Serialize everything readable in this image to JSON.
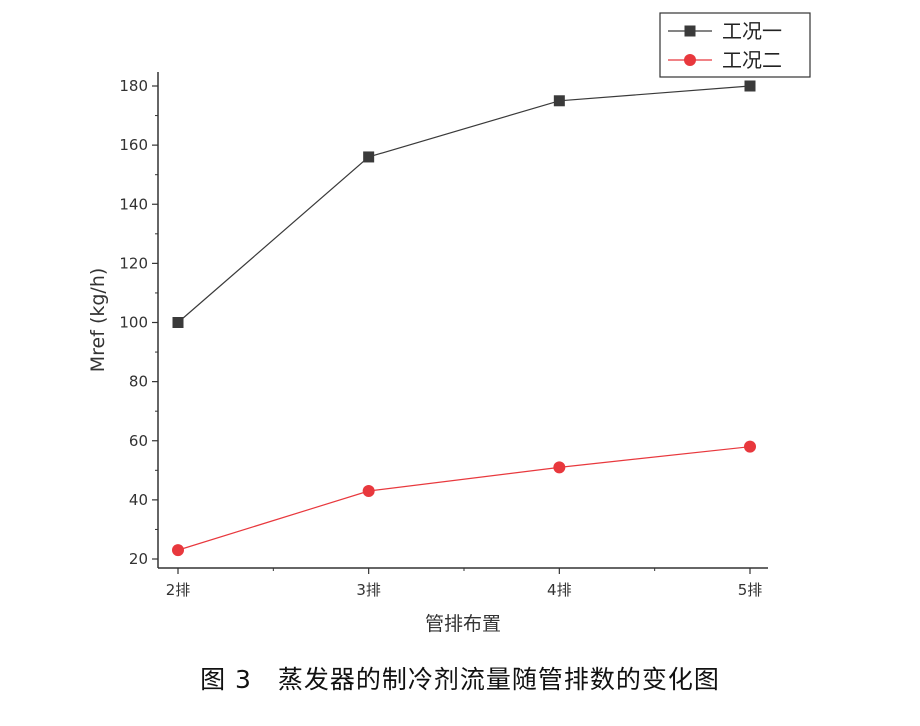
{
  "caption": "图 3　蒸发器的制冷剂流量随管排数的变化图",
  "chart_data": {
    "type": "line",
    "categories": [
      "2排",
      "3排",
      "4排",
      "5排"
    ],
    "series": [
      {
        "name": "工况一",
        "values": [
          100,
          156,
          175,
          180
        ],
        "color": "#3a3a3a",
        "marker": "square"
      },
      {
        "name": "工况二",
        "values": [
          23,
          43,
          51,
          58
        ],
        "color": "#e8383d",
        "marker": "circle"
      }
    ],
    "xlabel": "管排布置",
    "ylabel": "Mref (kg/h)",
    "ylim": [
      20,
      180
    ],
    "yticks": [
      20,
      40,
      60,
      80,
      100,
      120,
      140,
      160,
      180
    ],
    "grid": false,
    "legend_position": "top-right"
  }
}
